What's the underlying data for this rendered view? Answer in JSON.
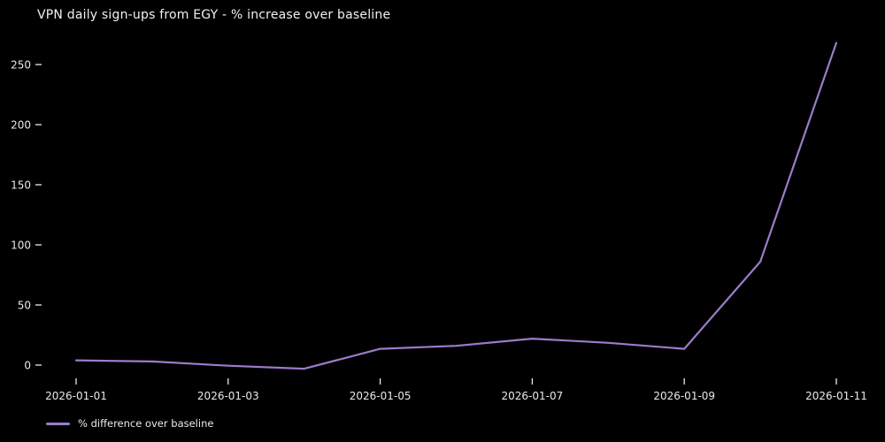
{
  "chart_data": {
    "type": "line",
    "title": "VPN daily sign-ups from EGY - % increase over baseline",
    "categories": [
      "2026-01-01",
      "2026-01-02",
      "2026-01-03",
      "2026-01-04",
      "2026-01-05",
      "2026-01-06",
      "2026-01-07",
      "2026-01-08",
      "2026-01-09",
      "2026-01-10",
      "2026-01-11"
    ],
    "series": [
      {
        "name": "% difference over baseline",
        "values": [
          4,
          3,
          -0.5,
          -3,
          13.5,
          16,
          22,
          18.5,
          13.5,
          86,
          268
        ],
        "color": "#9b7cc9"
      }
    ],
    "x_ticks_shown": [
      "2026-01-01",
      "2026-01-03",
      "2026-01-05",
      "2026-01-07",
      "2026-01-09",
      "2026-01-11"
    ],
    "y_ticks": [
      0,
      50,
      100,
      150,
      200,
      250
    ],
    "ylim": [
      -11,
      281
    ],
    "xlabel": "",
    "ylabel": "",
    "grid": false,
    "axis_spines": false,
    "legend_position": "lower-left",
    "background_color": "#000000",
    "text_color": "#e9e9e9",
    "title_color": "#f2f2f2"
  }
}
